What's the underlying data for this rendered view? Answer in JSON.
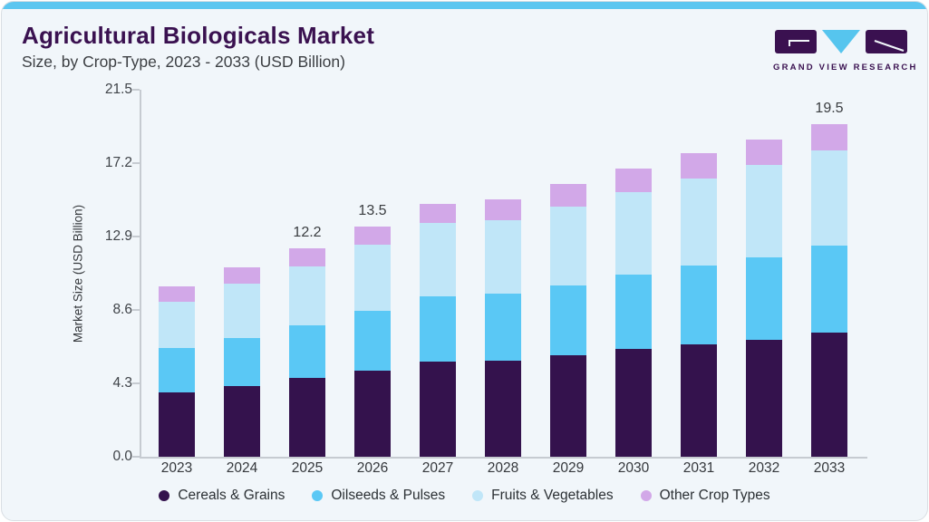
{
  "header": {
    "title": "Agricultural Biologicals Market",
    "subtitle": "Size, by Crop-Type, 2023 - 2033 (USD Billion)"
  },
  "logo": {
    "text": "GRAND VIEW RESEARCH"
  },
  "colors": {
    "accent_bar": "#5bc6f0",
    "title_text": "#3a1150",
    "card_background": "#f1f6fa",
    "axis_line": "#c6cbd1",
    "logo_purple": "#3a1150",
    "logo_blue": "#56c5ee"
  },
  "chart_data": {
    "type": "bar",
    "stacked": true,
    "title": "Agricultural Biologicals Market Size, by Crop-Type, 2023 - 2033 (USD Billion)",
    "xlabel": "",
    "ylabel": "Market Size (USD Billion)",
    "ylim": [
      0,
      21.5
    ],
    "yticks": [
      0.0,
      4.3,
      8.6,
      12.9,
      17.2,
      21.5
    ],
    "ytick_labels": [
      "0.0",
      "4.3",
      "8.6",
      "12.9",
      "17.2",
      "21.5"
    ],
    "grid": false,
    "legend_position": "bottom",
    "categories": [
      "2023",
      "2024",
      "2025",
      "2026",
      "2027",
      "2028",
      "2029",
      "2030",
      "2031",
      "2032",
      "2033"
    ],
    "series": [
      {
        "name": "Cereals & Grains",
        "color": "#34124d",
        "values": [
          3.75,
          4.15,
          4.6,
          5.05,
          5.6,
          5.65,
          5.95,
          6.3,
          6.6,
          6.85,
          7.3
        ]
      },
      {
        "name": "Oilseeds & Pulses",
        "color": "#5ac8f5",
        "values": [
          2.6,
          2.8,
          3.1,
          3.5,
          3.8,
          3.9,
          4.1,
          4.35,
          4.6,
          4.85,
          5.05
        ]
      },
      {
        "name": "Fruits & Vegetables",
        "color": "#c0e6f8",
        "values": [
          2.75,
          3.2,
          3.45,
          3.85,
          4.3,
          4.3,
          4.6,
          4.85,
          5.1,
          5.4,
          5.6
        ]
      },
      {
        "name": "Other Crop Types",
        "color": "#d2a8e8",
        "values": [
          0.9,
          0.95,
          1.05,
          1.1,
          1.1,
          1.25,
          1.35,
          1.4,
          1.5,
          1.5,
          1.55
        ]
      }
    ],
    "totals": [
      10.0,
      11.1,
      12.2,
      13.5,
      14.8,
      15.1,
      16.0,
      16.9,
      17.8,
      18.6,
      19.5
    ],
    "bar_labels": [
      "",
      "",
      "12.2",
      "13.5",
      "",
      "",
      "",
      "",
      "",
      "",
      "19.5"
    ]
  }
}
